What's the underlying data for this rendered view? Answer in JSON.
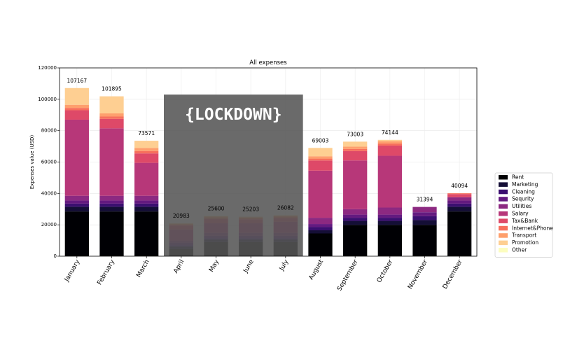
{
  "chart_data": {
    "type": "bar",
    "stacked": true,
    "title": "All expenses",
    "xlabel": "",
    "ylabel": "Expenses value (USD)",
    "ylim": [
      0,
      120000
    ],
    "yticks": [
      0,
      20000,
      40000,
      60000,
      80000,
      100000,
      120000
    ],
    "grid": true,
    "legend_position": "right",
    "categories": [
      "January",
      "February",
      "March",
      "April",
      "May",
      "June",
      "July",
      "August",
      "September",
      "October",
      "November",
      "December"
    ],
    "totals": [
      107167,
      101895,
      73571,
      20983,
      25600,
      25203,
      26082,
      69003,
      73003,
      74144,
      31394,
      40094
    ],
    "series": [
      {
        "name": "Rent",
        "color": "#000004",
        "values": [
          28500,
          28500,
          28500,
          4500,
          9000,
          9000,
          9000,
          14500,
          20000,
          20000,
          20000,
          28500
        ]
      },
      {
        "name": "Marketing",
        "color": "#140e36",
        "values": [
          3000,
          3000,
          3000,
          1500,
          1500,
          1500,
          1500,
          2000,
          2500,
          2500,
          3000,
          3000
        ]
      },
      {
        "name": "Cleaning",
        "color": "#3b0f70",
        "values": [
          2000,
          2000,
          2000,
          1000,
          1000,
          1000,
          1000,
          2000,
          2000,
          2000,
          2500,
          2000
        ]
      },
      {
        "name": "Sequrity",
        "color": "#641a80",
        "values": [
          2000,
          2000,
          2000,
          1500,
          1500,
          1500,
          1500,
          2000,
          2000,
          2000,
          2500,
          2000
        ]
      },
      {
        "name": "Utilities",
        "color": "#8c2981",
        "values": [
          3000,
          3000,
          3000,
          1500,
          2000,
          2000,
          2000,
          4000,
          3500,
          4500,
          3394,
          2094
        ]
      },
      {
        "name": "Salary",
        "color": "#b73779",
        "values": [
          48500,
          43000,
          21000,
          7000,
          6000,
          6000,
          7000,
          30000,
          31000,
          33000,
          0,
          0
        ]
      },
      {
        "name": "Tax&Bank",
        "color": "#de4968",
        "values": [
          6000,
          6000,
          6000,
          2500,
          2800,
          2500,
          2300,
          6500,
          6000,
          6500,
          0,
          2000
        ]
      },
      {
        "name": "Internet&Phone",
        "color": "#f7705c",
        "values": [
          1500,
          1500,
          1500,
          600,
          900,
          800,
          900,
          1200,
          1300,
          1300,
          0,
          500
        ]
      },
      {
        "name": "Transport",
        "color": "#fe9f6d",
        "values": [
          2000,
          2000,
          2000,
          500,
          500,
          500,
          500,
          1500,
          1500,
          1500,
          0,
          0
        ]
      },
      {
        "name": "Promotion",
        "color": "#fecf92",
        "values": [
          10667,
          10895,
          4571,
          383,
          400,
          403,
          382,
          5303,
          3203,
          844,
          0,
          0
        ]
      },
      {
        "name": "Other",
        "color": "#fcfdbf",
        "values": [
          0,
          0,
          0,
          0,
          0,
          0,
          0,
          0,
          0,
          0,
          0,
          0
        ]
      }
    ],
    "annotations": [
      {
        "text": "{LOCKDOWN}",
        "from_category": "April",
        "to_category": "July",
        "box_top": 103000
      }
    ]
  }
}
